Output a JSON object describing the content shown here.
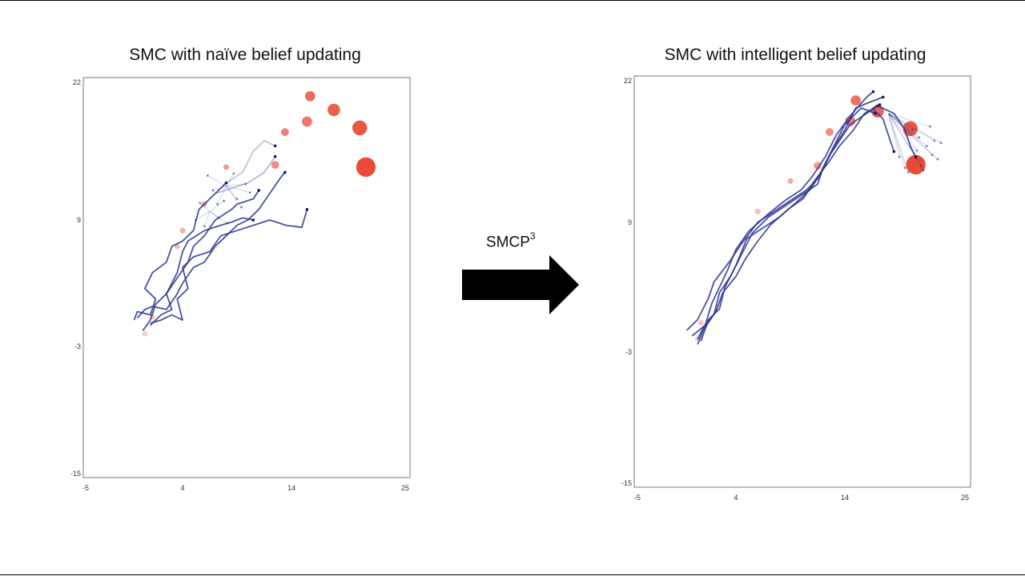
{
  "transform_label": "SMCP",
  "transform_superscript": "3",
  "colors": {
    "observation": "#e8412c",
    "trajectory": "#2a3490",
    "frame": "#555555"
  },
  "chart_data": [
    {
      "type": "scatter",
      "title": "SMC with naïve belief updating",
      "xlim": [
        -5,
        25
      ],
      "ylim": [
        -15,
        22
      ],
      "xticks": [
        -5,
        4,
        14,
        25
      ],
      "yticks": [
        22,
        9,
        -3,
        -15
      ],
      "grid": false,
      "observations": [
        {
          "x": 0.5,
          "y": -1.8,
          "size": 1
        },
        {
          "x": 1.2,
          "y": -0.2,
          "size": 1
        },
        {
          "x": 3.5,
          "y": 6.5,
          "size": 1
        },
        {
          "x": 4.0,
          "y": 8.0,
          "size": 1
        },
        {
          "x": 6.0,
          "y": 10.5,
          "size": 1
        },
        {
          "x": 8.0,
          "y": 14.0,
          "size": 1
        },
        {
          "x": 12.5,
          "y": 14.2,
          "size": 2
        },
        {
          "x": 13.4,
          "y": 17.3,
          "size": 2
        },
        {
          "x": 15.5,
          "y": 18.3,
          "size": 3
        },
        {
          "x": 15.8,
          "y": 20.7,
          "size": 3
        },
        {
          "x": 18.1,
          "y": 19.4,
          "size": 4
        },
        {
          "x": 20.6,
          "y": 17.7,
          "size": 5
        },
        {
          "x": 21.2,
          "y": 14.0,
          "size": 7
        }
      ],
      "trajectories": [
        {
          "points": [
            [
              -0.5,
              -0.5
            ],
            [
              -0.2,
              0.3
            ],
            [
              1.0,
              0.0
            ],
            [
              1.5,
              1.5
            ],
            [
              0.5,
              2.5
            ],
            [
              1.2,
              4.0
            ],
            [
              2.5,
              5.0
            ],
            [
              3.0,
              6.5
            ],
            [
              4.0,
              7.0
            ],
            [
              5.0,
              8.0
            ],
            [
              5.5,
              10.0
            ],
            [
              7.0,
              11.5
            ],
            [
              8.0,
              12.5
            ]
          ],
          "opacity": 0.85
        },
        {
          "points": [
            [
              1.0,
              -1.0
            ],
            [
              2.0,
              0.0
            ],
            [
              3.0,
              0.5
            ],
            [
              2.5,
              2.0
            ],
            [
              3.5,
              3.5
            ],
            [
              4.5,
              5.0
            ],
            [
              5.0,
              6.5
            ],
            [
              6.0,
              7.5
            ],
            [
              7.0,
              9.0
            ],
            [
              8.5,
              10.0
            ],
            [
              9.0,
              10.5
            ],
            [
              10.5,
              11.0
            ],
            [
              11.0,
              11.8
            ]
          ],
          "opacity": 0.85
        },
        {
          "points": [
            [
              0.3,
              -1.5
            ],
            [
              1.0,
              -0.5
            ],
            [
              1.5,
              1.0
            ],
            [
              2.5,
              2.0
            ],
            [
              3.5,
              4.0
            ],
            [
              4.0,
              6.0
            ],
            [
              4.5,
              7.0
            ],
            [
              6.0,
              8.0
            ],
            [
              7.5,
              8.5
            ],
            [
              8.5,
              8.8
            ],
            [
              9.5,
              9.2
            ],
            [
              10.5,
              9.0
            ]
          ],
          "opacity": 0.85
        },
        {
          "points": [
            [
              1.0,
              -0.8
            ],
            [
              2.0,
              -0.5
            ],
            [
              3.0,
              0.0
            ],
            [
              4.0,
              -0.5
            ],
            [
              3.5,
              1.5
            ],
            [
              4.5,
              2.5
            ],
            [
              4.0,
              4.5
            ],
            [
              5.0,
              5.5
            ],
            [
              6.5,
              6.0
            ],
            [
              7.5,
              7.5
            ],
            [
              9.0,
              8.0
            ],
            [
              10.5,
              8.5
            ],
            [
              12.0,
              9.0
            ],
            [
              13.5,
              8.5
            ],
            [
              15.0,
              8.3
            ],
            [
              15.5,
              10.0
            ]
          ],
          "opacity": 0.85
        },
        {
          "points": [
            [
              -0.2,
              -0.3
            ],
            [
              0.5,
              0.5
            ],
            [
              1.2,
              0.8
            ],
            [
              2.5,
              0.5
            ],
            [
              3.5,
              2.0
            ],
            [
              4.0,
              3.0
            ],
            [
              5.0,
              4.5
            ],
            [
              6.0,
              5.0
            ],
            [
              7.0,
              6.5
            ],
            [
              8.0,
              7.5
            ],
            [
              9.0,
              8.5
            ],
            [
              10.0,
              9.0
            ],
            [
              11.0,
              10.0
            ],
            [
              12.0,
              11.5
            ],
            [
              13.0,
              13.0
            ],
            [
              13.4,
              13.5
            ]
          ],
          "opacity": 0.85
        },
        {
          "points": [
            [
              8.0,
              12.5
            ],
            [
              9.5,
              13.5
            ],
            [
              10.5,
              15.5
            ],
            [
              11.5,
              16.5
            ],
            [
              12.5,
              16.0
            ]
          ],
          "opacity": 0.3
        },
        {
          "points": [
            [
              7.0,
              11.5
            ],
            [
              8.5,
              12.0
            ],
            [
              10.0,
              12.5
            ],
            [
              11.5,
              13.5
            ],
            [
              12.5,
              15.0
            ]
          ],
          "opacity": 0.35
        }
      ],
      "particle_groups": [
        {
          "center": [
            8.0,
            12.2
          ],
          "points": [
            [
              6.3,
              13.2
            ],
            [
              9.8,
              12.4
            ],
            [
              10.2,
              11.6
            ],
            [
              9.0,
              11.0
            ],
            [
              7.2,
              10.5
            ],
            [
              8.7,
              13.4
            ],
            [
              6.8,
              11.8
            ],
            [
              9.4,
              10.2
            ]
          ]
        },
        {
          "center": [
            6.5,
            9.8
          ],
          "points": [
            [
              5.2,
              9.0
            ],
            [
              7.8,
              10.8
            ],
            [
              7.3,
              9.2
            ],
            [
              5.6,
              10.6
            ],
            [
              8.1,
              8.7
            ],
            [
              6.0,
              8.4
            ]
          ]
        }
      ]
    },
    {
      "type": "scatter",
      "title": "SMC with intelligent belief updating",
      "xlim": [
        -5,
        25
      ],
      "ylim": [
        -15,
        22
      ],
      "xticks": [
        -5,
        4,
        14,
        25
      ],
      "yticks": [
        22,
        9,
        -3,
        -15
      ],
      "grid": false,
      "observations": [
        {
          "x": 0.5,
          "y": -1.8,
          "size": 1
        },
        {
          "x": 0.8,
          "y": -0.3,
          "size": 1
        },
        {
          "x": 6.0,
          "y": 10.0,
          "size": 1
        },
        {
          "x": 9.0,
          "y": 12.8,
          "size": 1
        },
        {
          "x": 11.5,
          "y": 14.2,
          "size": 2
        },
        {
          "x": 12.6,
          "y": 17.3,
          "size": 2
        },
        {
          "x": 14.5,
          "y": 18.3,
          "size": 3
        },
        {
          "x": 15.0,
          "y": 20.2,
          "size": 3
        },
        {
          "x": 17.0,
          "y": 19.2,
          "size": 4
        },
        {
          "x": 20.0,
          "y": 17.6,
          "size": 5
        },
        {
          "x": 20.5,
          "y": 14.3,
          "size": 7
        }
      ],
      "trajectories": [
        {
          "points": [
            [
              -0.5,
              -1.0
            ],
            [
              0.5,
              0.0
            ],
            [
              1.5,
              2.0
            ],
            [
              2.0,
              3.5
            ],
            [
              3.5,
              5.5
            ],
            [
              4.5,
              7.0
            ],
            [
              6.0,
              9.0
            ],
            [
              7.5,
              10.0
            ],
            [
              9.0,
              11.0
            ],
            [
              10.5,
              12.0
            ],
            [
              11.5,
              13.0
            ],
            [
              12.5,
              15.0
            ],
            [
              13.5,
              16.5
            ],
            [
              14.5,
              18.0
            ],
            [
              16.0,
              19.0
            ],
            [
              17.0,
              19.7
            ]
          ],
          "opacity": 0.85
        },
        {
          "points": [
            [
              0.5,
              -2.3
            ],
            [
              1.0,
              -1.0
            ],
            [
              2.0,
              0.5
            ],
            [
              2.5,
              2.5
            ],
            [
              3.5,
              4.0
            ],
            [
              4.5,
              6.0
            ],
            [
              5.5,
              8.0
            ],
            [
              7.0,
              9.5
            ],
            [
              8.5,
              10.5
            ],
            [
              10.0,
              11.5
            ],
            [
              11.5,
              12.5
            ],
            [
              12.0,
              14.0
            ],
            [
              13.0,
              16.0
            ],
            [
              14.0,
              18.0
            ],
            [
              15.5,
              19.5
            ],
            [
              16.8,
              19.0
            ]
          ],
          "opacity": 0.85
        },
        {
          "points": [
            [
              0.8,
              -2.0
            ],
            [
              1.5,
              0.0
            ],
            [
              2.5,
              1.0
            ],
            [
              3.0,
              3.0
            ],
            [
              4.0,
              5.0
            ],
            [
              5.0,
              7.5
            ],
            [
              6.5,
              8.5
            ],
            [
              8.0,
              9.5
            ],
            [
              9.5,
              10.8
            ],
            [
              10.8,
              12.0
            ],
            [
              11.8,
              13.5
            ],
            [
              12.8,
              15.5
            ],
            [
              14.0,
              17.5
            ],
            [
              15.0,
              19.5
            ],
            [
              16.2,
              20.0
            ],
            [
              17.5,
              20.5
            ]
          ],
          "opacity": 0.85
        },
        {
          "points": [
            [
              0.0,
              -1.5
            ],
            [
              1.2,
              -0.5
            ],
            [
              1.8,
              1.5
            ],
            [
              2.5,
              3.0
            ],
            [
              3.2,
              4.5
            ],
            [
              4.0,
              6.5
            ],
            [
              5.2,
              8.2
            ],
            [
              7.0,
              9.8
            ],
            [
              8.5,
              11.0
            ],
            [
              10.0,
              12.0
            ],
            [
              11.0,
              13.2
            ],
            [
              12.2,
              15.0
            ],
            [
              13.2,
              17.0
            ],
            [
              14.5,
              18.8
            ],
            [
              16.0,
              20.5
            ],
            [
              16.6,
              21.0
            ]
          ],
          "opacity": 0.85
        },
        {
          "points": [
            [
              0.5,
              -1.8
            ],
            [
              1.0,
              -0.8
            ],
            [
              2.2,
              0.8
            ],
            [
              2.8,
              2.5
            ],
            [
              4.0,
              4.0
            ],
            [
              4.8,
              5.5
            ],
            [
              5.8,
              7.0
            ],
            [
              7.2,
              8.8
            ],
            [
              8.8,
              10.2
            ],
            [
              10.2,
              11.2
            ],
            [
              11.2,
              12.8
            ],
            [
              12.5,
              14.5
            ],
            [
              13.5,
              16.0
            ],
            [
              14.8,
              17.5
            ],
            [
              15.8,
              19.0
            ],
            [
              17.2,
              19.8
            ]
          ],
          "opacity": 0.85
        },
        {
          "points": [
            [
              16.5,
              19.5
            ],
            [
              17.5,
              18.5
            ],
            [
              18.0,
              17.0
            ],
            [
              18.5,
              15.5
            ]
          ],
          "opacity": 0.85
        },
        {
          "points": [
            [
              17.0,
              19.7
            ],
            [
              18.5,
              19.0
            ],
            [
              19.5,
              17.5
            ],
            [
              20.0,
              16.0
            ],
            [
              20.5,
              15.0
            ]
          ],
          "opacity": 0.85
        }
      ],
      "particle_groups": [
        {
          "center": [
            18.0,
            19.0
          ],
          "points": [
            [
              21.5,
              16.0
            ],
            [
              22.0,
              15.2
            ],
            [
              20.8,
              16.8
            ],
            [
              21.0,
              14.2
            ],
            [
              19.5,
              14.0
            ],
            [
              22.5,
              14.8
            ],
            [
              20.2,
              17.5
            ],
            [
              21.8,
              17.8
            ],
            [
              22.2,
              16.5
            ],
            [
              19.0,
              15.0
            ],
            [
              21.2,
              13.8
            ],
            [
              22.8,
              16.3
            ],
            [
              20.6,
              15.6
            ],
            [
              19.8,
              13.6
            ]
          ]
        }
      ]
    }
  ]
}
